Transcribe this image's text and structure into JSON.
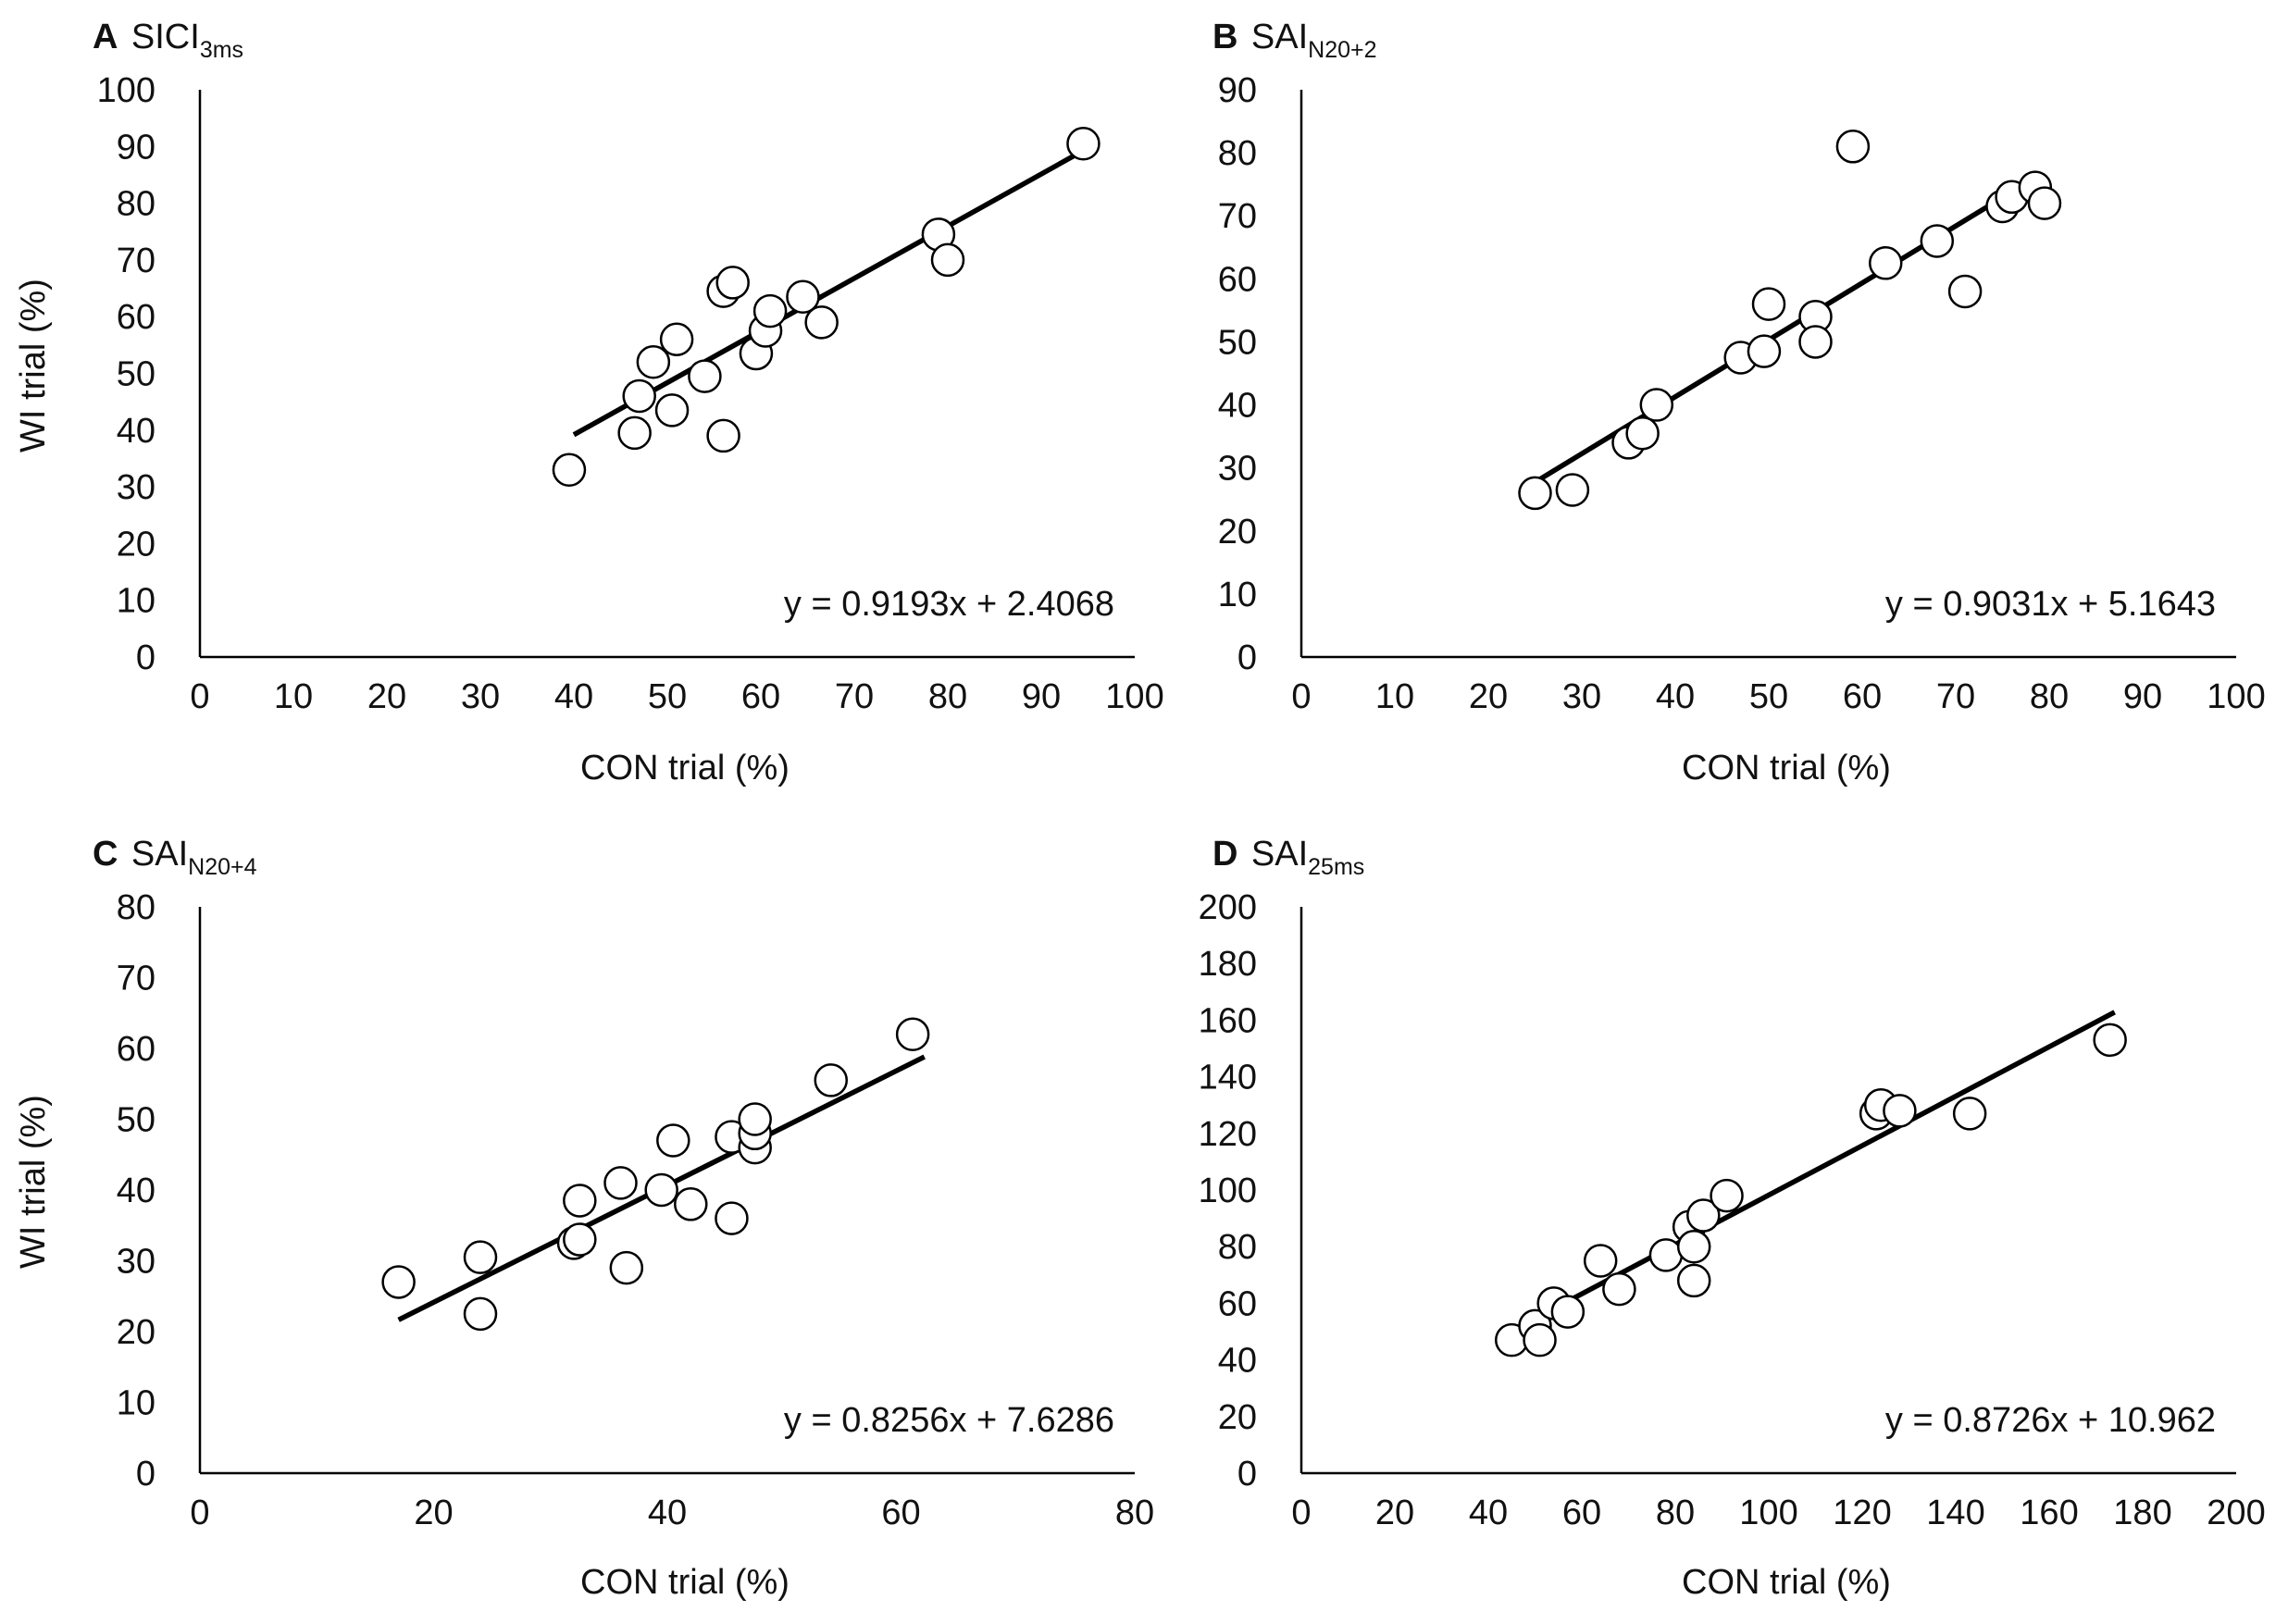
{
  "chart_data": [
    {
      "type": "scatter",
      "panel_letter": "A",
      "title_main": "SICI",
      "title_sub": "3ms",
      "xlabel": "CON trial (%)",
      "ylabel": "WI trial (%)",
      "xlim": [
        0,
        100
      ],
      "ylim": [
        0,
        100
      ],
      "xticks": [
        0,
        10,
        20,
        30,
        40,
        50,
        60,
        70,
        80,
        90,
        100
      ],
      "yticks": [
        0,
        10,
        20,
        30,
        40,
        50,
        60,
        70,
        80,
        90,
        100
      ],
      "equation": "y = 0.9193x + 2.4068",
      "trend": {
        "slope": 0.9193,
        "intercept": 2.4068,
        "x_range": [
          40,
          94.5
        ]
      },
      "points": [
        [
          39.5,
          33
        ],
        [
          46.5,
          39.5
        ],
        [
          47,
          46
        ],
        [
          48.5,
          52
        ],
        [
          50.5,
          43.5
        ],
        [
          51,
          56
        ],
        [
          54,
          49.5
        ],
        [
          56,
          64.5
        ],
        [
          56,
          39
        ],
        [
          57,
          66
        ],
        [
          59.5,
          53.5
        ],
        [
          60.5,
          57.5
        ],
        [
          61,
          61
        ],
        [
          64.5,
          63.5
        ],
        [
          66.5,
          59
        ],
        [
          79,
          74.5
        ],
        [
          80,
          70
        ],
        [
          94.5,
          90.5
        ]
      ]
    },
    {
      "type": "scatter",
      "panel_letter": "B",
      "title_main": "SAI",
      "title_sub": "N20+2",
      "xlabel": "CON trial (%)",
      "ylabel": "",
      "xlim": [
        0,
        100
      ],
      "ylim": [
        0,
        90
      ],
      "xticks": [
        0,
        10,
        20,
        30,
        40,
        50,
        60,
        70,
        80,
        90,
        100
      ],
      "yticks": [
        0,
        10,
        20,
        30,
        40,
        50,
        60,
        70,
        80,
        90
      ],
      "equation": "y = 0.9031x + 5.1643",
      "trend": {
        "slope": 0.9031,
        "intercept": 5.1643,
        "x_range": [
          25,
          79
        ]
      },
      "points": [
        [
          25,
          26
        ],
        [
          29,
          26.5
        ],
        [
          35,
          34
        ],
        [
          36.5,
          35.5
        ],
        [
          38,
          40
        ],
        [
          47,
          47.5
        ],
        [
          49.5,
          48.5
        ],
        [
          50,
          56
        ],
        [
          55,
          54
        ],
        [
          55,
          50
        ],
        [
          59,
          81
        ],
        [
          62.5,
          62.5
        ],
        [
          68,
          66
        ],
        [
          71,
          58
        ],
        [
          75,
          71.5
        ],
        [
          76,
          73
        ],
        [
          78.5,
          74.5
        ],
        [
          79.5,
          72
        ]
      ]
    },
    {
      "type": "scatter",
      "panel_letter": "C",
      "title_main": "SAI",
      "title_sub": "N20+4",
      "xlabel": "CON trial (%)",
      "ylabel": "WI trial (%)",
      "xlim": [
        0,
        80
      ],
      "ylim": [
        0,
        80
      ],
      "xticks": [
        0,
        20,
        40,
        60,
        80
      ],
      "yticks": [
        0,
        10,
        20,
        30,
        40,
        50,
        60,
        70,
        80
      ],
      "equation": "y = 0.8256x + 7.6286",
      "trend": {
        "slope": 0.8256,
        "intercept": 7.6286,
        "x_range": [
          17,
          62
        ]
      },
      "points": [
        [
          17,
          27
        ],
        [
          24,
          30.5
        ],
        [
          24,
          22.5
        ],
        [
          32,
          32.5
        ],
        [
          32.5,
          38.5
        ],
        [
          32.5,
          33
        ],
        [
          36,
          41
        ],
        [
          36.5,
          29
        ],
        [
          39.5,
          40
        ],
        [
          40.5,
          47
        ],
        [
          42,
          38
        ],
        [
          45.5,
          47.5
        ],
        [
          45.5,
          36
        ],
        [
          47.5,
          46
        ],
        [
          47.5,
          48
        ],
        [
          47.5,
          50
        ],
        [
          54,
          55.5
        ],
        [
          61,
          62
        ]
      ]
    },
    {
      "type": "scatter",
      "panel_letter": "D",
      "title_main": "SAI",
      "title_sub": "25ms",
      "xlabel": "CON trial (%)",
      "ylabel": "",
      "xlim": [
        0,
        200
      ],
      "ylim": [
        0,
        200
      ],
      "xticks": [
        0,
        20,
        40,
        60,
        80,
        100,
        120,
        140,
        160,
        180,
        200
      ],
      "yticks": [
        0,
        20,
        40,
        60,
        80,
        100,
        120,
        140,
        160,
        180,
        200
      ],
      "equation": "y = 0.8726x + 10.962",
      "trend": {
        "slope": 0.8726,
        "intercept": 10.962,
        "x_range": [
          45,
          174
        ]
      },
      "points": [
        [
          45,
          47
        ],
        [
          50,
          52
        ],
        [
          51,
          47
        ],
        [
          54,
          60
        ],
        [
          57,
          57
        ],
        [
          64,
          75
        ],
        [
          68,
          65
        ],
        [
          78,
          77
        ],
        [
          83,
          87
        ],
        [
          84,
          80
        ],
        [
          84,
          68
        ],
        [
          86,
          91
        ],
        [
          91,
          98
        ],
        [
          123,
          127
        ],
        [
          124,
          130
        ],
        [
          128,
          128
        ],
        [
          143,
          127
        ],
        [
          173,
          153
        ]
      ]
    }
  ]
}
